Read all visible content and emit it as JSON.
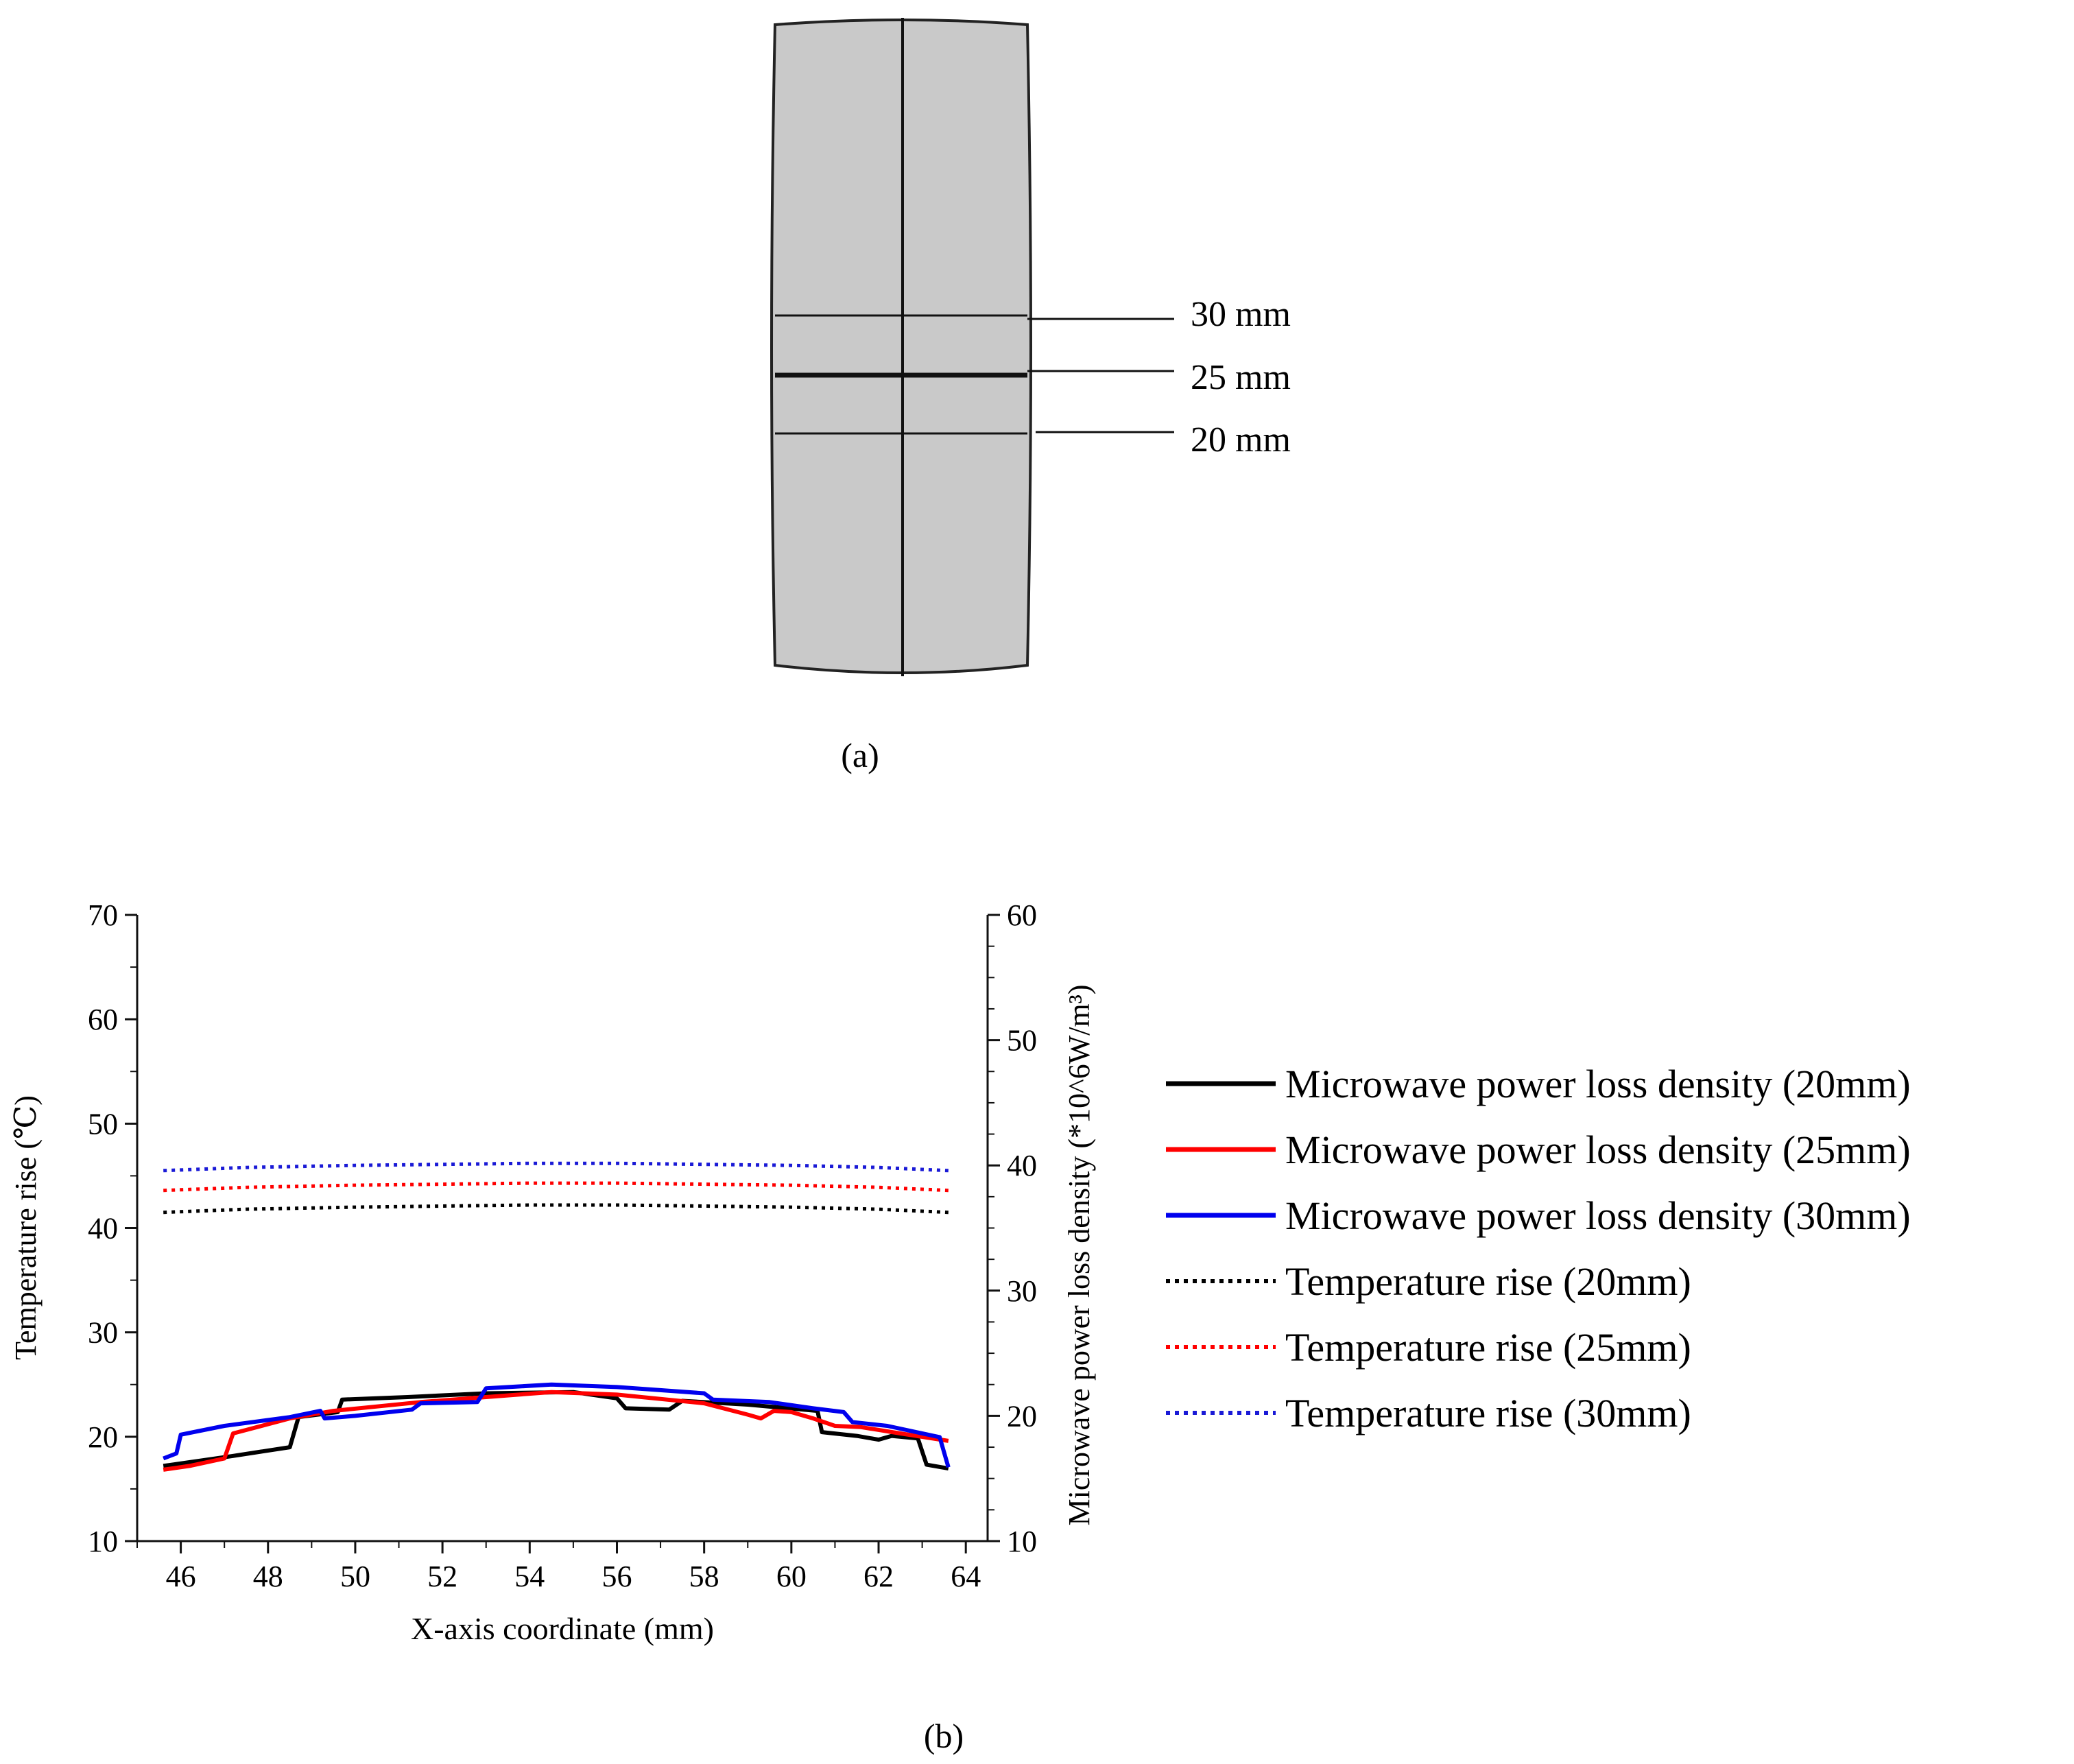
{
  "panel_a": {
    "label": "(a)",
    "section_labels": [
      "30 mm",
      "25 mm",
      "20 mm"
    ],
    "section_heights_mm": [
      30,
      25,
      20
    ]
  },
  "panel_b": {
    "label": "(b)"
  },
  "chart_data": {
    "type": "line",
    "title": "",
    "xlabel": "X-axis coordinate (mm)",
    "ylabel": "Temperature rise (℃)",
    "ylabel_right": "Microwave power loss density (*10^6W/m³)",
    "xlim": [
      45,
      64.5
    ],
    "ylim": [
      10,
      70
    ],
    "ylim_right": [
      10,
      60
    ],
    "x_ticks": [
      46,
      48,
      50,
      52,
      54,
      56,
      58,
      60,
      62,
      64
    ],
    "y_ticks": [
      10,
      20,
      30,
      40,
      50,
      60,
      70
    ],
    "y_ticks_right": [
      10,
      20,
      30,
      40,
      50,
      60
    ],
    "grid": false,
    "legend_position": "right",
    "series": [
      {
        "name": "Microwave power loss density (20mm)",
        "axis": "right",
        "color": "#000000",
        "style": "solid",
        "x": [
          45.6,
          47.2,
          48.5,
          48.7,
          49.6,
          49.7,
          51.2,
          53.0,
          55.0,
          56.0,
          56.2,
          57.2,
          57.5,
          59.0,
          60.6,
          60.7,
          61.5,
          62.0,
          62.3,
          62.9,
          63.1,
          63.6
        ],
        "y": [
          16.0,
          16.8,
          17.5,
          19.9,
          20.3,
          21.3,
          21.5,
          21.8,
          21.9,
          21.4,
          20.6,
          20.5,
          21.2,
          20.9,
          20.4,
          18.7,
          18.4,
          18.1,
          18.4,
          18.2,
          16.1,
          15.8
        ]
      },
      {
        "name": "Microwave power loss density (25mm)",
        "axis": "right",
        "color": "#ff0000",
        "style": "solid",
        "x": [
          45.6,
          46.2,
          47.0,
          47.2,
          48.5,
          49.5,
          51.5,
          53.0,
          54.5,
          56.0,
          58.0,
          59.0,
          59.3,
          59.6,
          60.0,
          60.5,
          61.0,
          61.6,
          62.5,
          63.6
        ],
        "y": [
          15.7,
          16.0,
          16.6,
          18.6,
          19.8,
          20.4,
          21.1,
          21.5,
          21.9,
          21.7,
          21.0,
          20.1,
          19.8,
          20.4,
          20.3,
          19.8,
          19.2,
          19.1,
          18.6,
          18.0
        ]
      },
      {
        "name": "Microwave power loss density (30mm)",
        "axis": "right",
        "color": "#0000ee",
        "style": "solid",
        "x": [
          45.6,
          45.9,
          46.0,
          47.0,
          48.5,
          49.2,
          49.3,
          50.0,
          51.3,
          51.5,
          52.8,
          53.0,
          54.5,
          56.0,
          58.0,
          58.2,
          59.5,
          60.5,
          61.2,
          61.4,
          62.2,
          63.4,
          63.6
        ],
        "y": [
          16.6,
          17.0,
          18.5,
          19.2,
          19.9,
          20.4,
          19.8,
          20.0,
          20.5,
          21.0,
          21.1,
          22.2,
          22.5,
          22.3,
          21.8,
          21.3,
          21.1,
          20.6,
          20.3,
          19.5,
          19.2,
          18.3,
          15.9
        ]
      },
      {
        "name": "Temperature rise (20mm)",
        "axis": "left",
        "color": "#000000",
        "style": "dotted",
        "x": [
          45.6,
          47.5,
          50,
          52,
          54,
          55,
          56,
          58,
          60,
          62,
          63.6
        ],
        "y": [
          41.5,
          41.8,
          42.0,
          42.1,
          42.2,
          42.2,
          42.2,
          42.1,
          42.0,
          41.8,
          41.5
        ]
      },
      {
        "name": "Temperature rise (25mm)",
        "axis": "left",
        "color": "#ff0000",
        "style": "dotted",
        "x": [
          45.6,
          47.5,
          50,
          52,
          54,
          55,
          56,
          58,
          60,
          62,
          63.6
        ],
        "y": [
          43.6,
          43.9,
          44.1,
          44.2,
          44.3,
          44.3,
          44.3,
          44.2,
          44.1,
          43.9,
          43.6
        ]
      },
      {
        "name": "Temperature rise (30mm)",
        "axis": "left",
        "color": "#1a1ad6",
        "style": "dotted",
        "x": [
          45.6,
          47.5,
          50,
          52,
          54,
          55,
          56,
          58,
          60,
          62,
          63.6
        ],
        "y": [
          45.5,
          45.8,
          46.0,
          46.1,
          46.2,
          46.2,
          46.2,
          46.1,
          46.0,
          45.8,
          45.5
        ]
      }
    ]
  }
}
